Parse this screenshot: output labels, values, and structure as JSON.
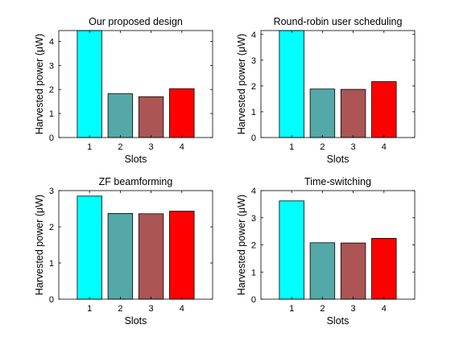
{
  "chart_data": [
    {
      "type": "bar",
      "title": "Our proposed design",
      "xlabel": "Slots",
      "ylabel": "Harvested power (μW)",
      "categories": [
        "1",
        "2",
        "3",
        "4"
      ],
      "values": [
        4.45,
        1.82,
        1.7,
        2.03
      ],
      "bar_colors": [
        "#00ffff",
        "#55a8a8",
        "#ab5555",
        "#ff0000"
      ],
      "ylim": [
        0,
        4.45
      ],
      "yticks": [
        0,
        1,
        2,
        3,
        4
      ]
    },
    {
      "type": "bar",
      "title": "Round-robin user scheduling",
      "xlabel": "Slots",
      "ylabel": "Harvested power (μW)",
      "categories": [
        "1",
        "2",
        "3",
        "4"
      ],
      "values": [
        4.15,
        1.88,
        1.87,
        2.17
      ],
      "bar_colors": [
        "#00ffff",
        "#55a8a8",
        "#ab5555",
        "#ff0000"
      ],
      "ylim": [
        0,
        4.15
      ],
      "yticks": [
        0,
        1,
        2,
        3,
        4
      ]
    },
    {
      "type": "bar",
      "title": "ZF beamforming",
      "xlabel": "Slots",
      "ylabel": "Harvested power (μW)",
      "categories": [
        "1",
        "2",
        "3",
        "4"
      ],
      "values": [
        2.85,
        2.37,
        2.36,
        2.43
      ],
      "bar_colors": [
        "#00ffff",
        "#55a8a8",
        "#ab5555",
        "#ff0000"
      ],
      "ylim": [
        0,
        3
      ],
      "yticks": [
        0,
        1,
        2,
        3
      ]
    },
    {
      "type": "bar",
      "title": "Time-switching",
      "xlabel": "Slots",
      "ylabel": "Harvested power (μW)",
      "categories": [
        "1",
        "2",
        "3",
        "4"
      ],
      "values": [
        3.62,
        2.08,
        2.07,
        2.24
      ],
      "bar_colors": [
        "#00ffff",
        "#55a8a8",
        "#ab5555",
        "#ff0000"
      ],
      "ylim": [
        0,
        4
      ],
      "yticks": [
        0,
        1,
        2,
        3,
        4
      ]
    }
  ]
}
